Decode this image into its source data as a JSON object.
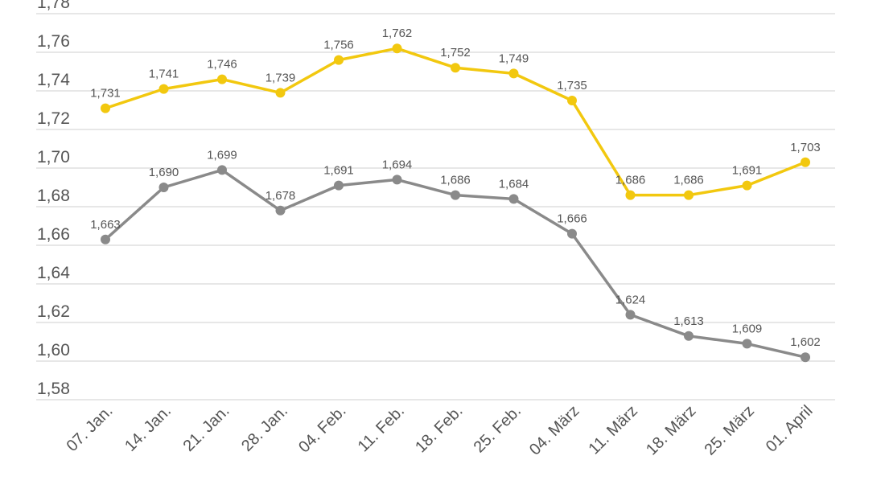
{
  "chart_data": {
    "type": "line",
    "categories": [
      "07. Jan.",
      "14. Jan.",
      "21. Jan.",
      "28. Jan.",
      "04. Feb.",
      "11. Feb.",
      "18. Feb.",
      "25. Feb.",
      "04. März",
      "11. März",
      "18. März",
      "25. März",
      "01. April"
    ],
    "series": [
      {
        "color": "#f2c80f",
        "values": [
          1.731,
          1.741,
          1.746,
          1.739,
          1.756,
          1.762,
          1.752,
          1.749,
          1.735,
          1.686,
          1.686,
          1.691,
          1.703
        ],
        "labels": [
          "1,731",
          "1,741",
          "1,746",
          "1,739",
          "1,756",
          "1,762",
          "1,752",
          "1,749",
          "1,735",
          "1,686",
          "1,686",
          "1,691",
          "1,703"
        ]
      },
      {
        "color": "#8a8a8a",
        "values": [
          1.663,
          1.69,
          1.699,
          1.678,
          1.691,
          1.694,
          1.686,
          1.684,
          1.666,
          1.624,
          1.613,
          1.609,
          1.602
        ],
        "labels": [
          "1,663",
          "1,690",
          "1,699",
          "1,678",
          "1,691",
          "1,694",
          "1,686",
          "1,684",
          "1,666",
          "1,624",
          "1,613",
          "1,609",
          "1,602"
        ]
      }
    ],
    "yticks": [
      1.58,
      1.6,
      1.62,
      1.64,
      1.66,
      1.68,
      1.7,
      1.72,
      1.74,
      1.76,
      1.78
    ],
    "ytick_labels": [
      "1,58",
      "1,60",
      "1,62",
      "1,64",
      "1,66",
      "1,68",
      "1,70",
      "1,72",
      "1,74",
      "1,76",
      "1,78"
    ],
    "ylim": [
      1.58,
      1.78
    ],
    "grid": true,
    "legend": "none"
  }
}
